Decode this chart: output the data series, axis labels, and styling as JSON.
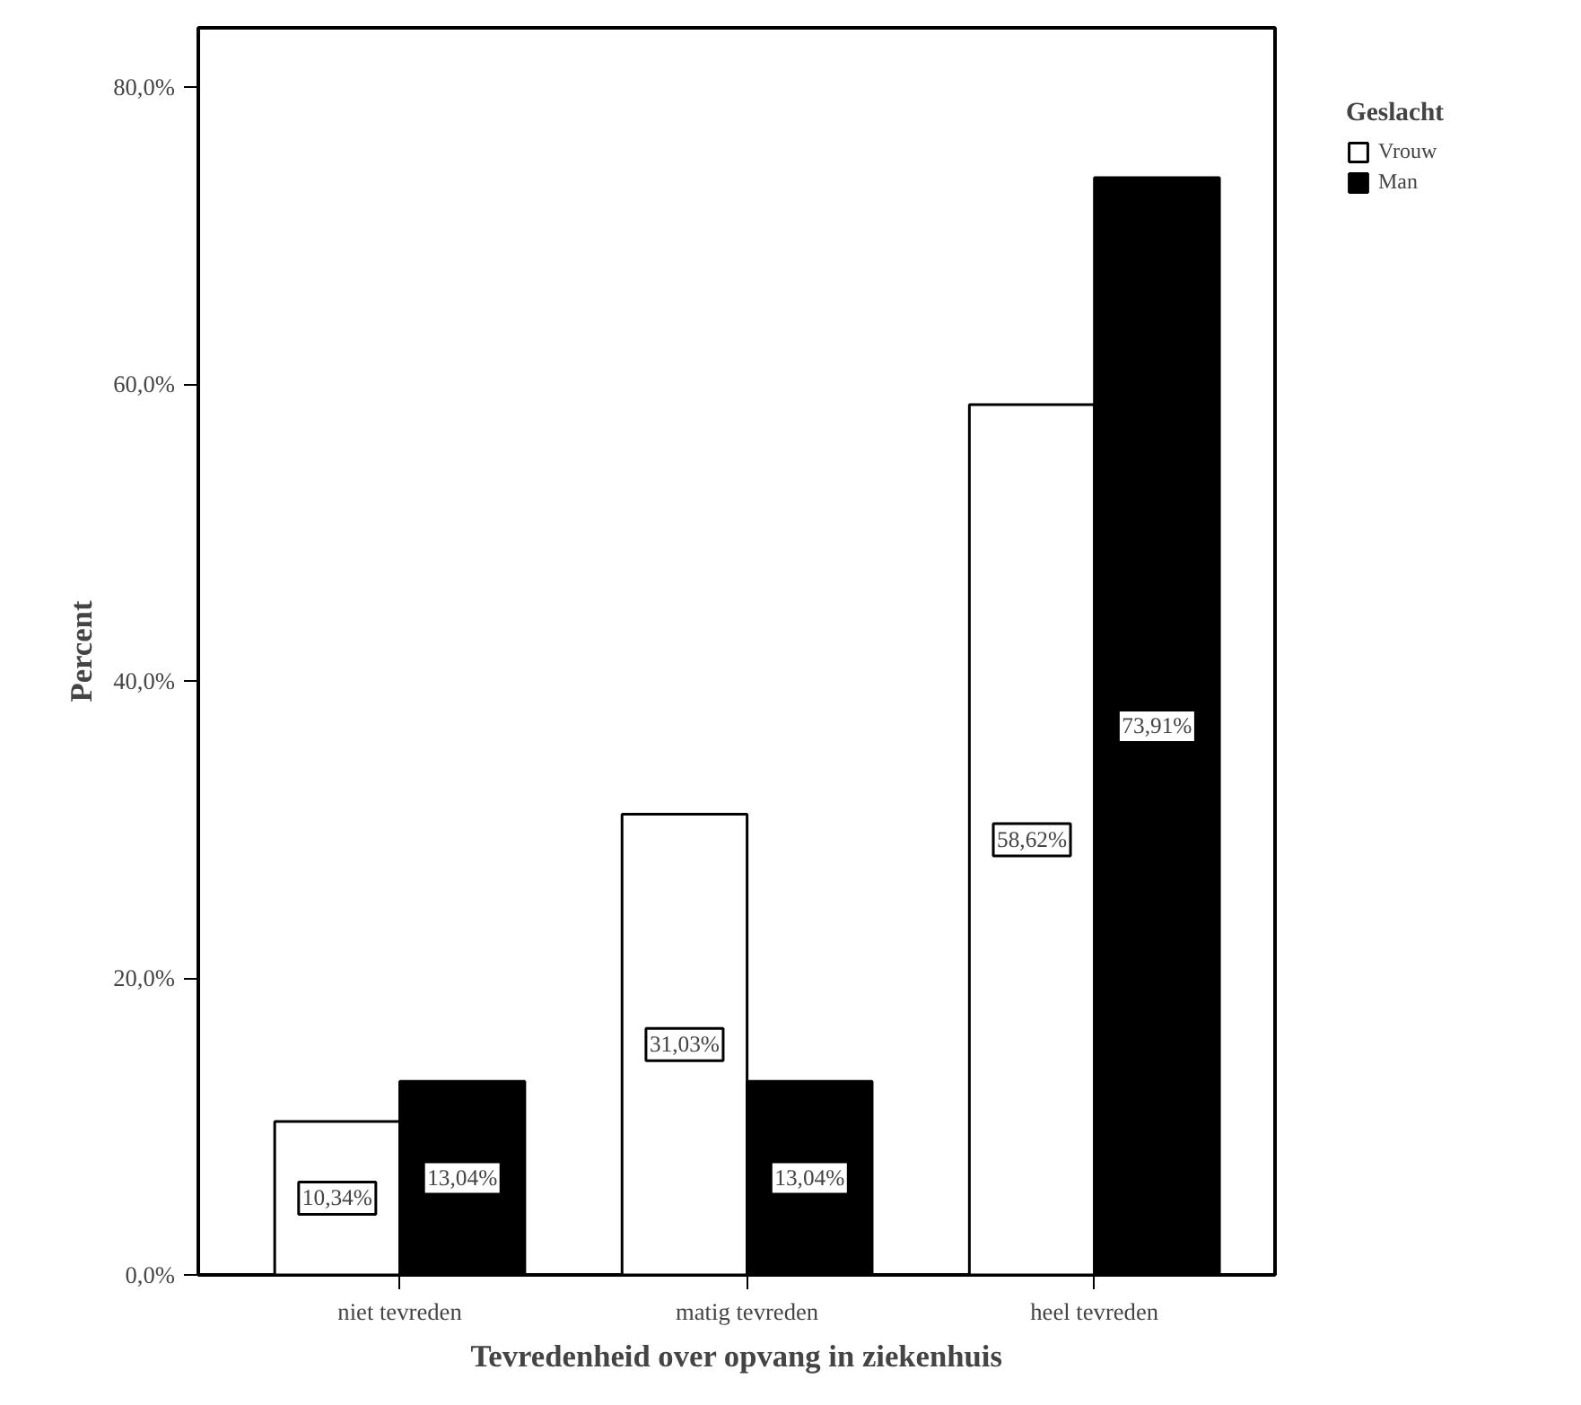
{
  "chart_data": {
    "type": "bar",
    "xlabel": "Tevredenheid over opvang in ziekenhuis",
    "ylabel": "Percent",
    "legend_title": "Geslacht",
    "legend": "top right",
    "categories": [
      "niet tevreden",
      "matig tevreden",
      "heel tevreden"
    ],
    "series": [
      {
        "name": "Vrouw",
        "color": "#ffffff",
        "values": [
          10.34,
          31.03,
          58.62
        ],
        "value_labels": [
          "10,34%",
          "31,03%",
          "58,62%"
        ]
      },
      {
        "name": "Man",
        "color": "#000000",
        "values": [
          13.04,
          13.04,
          73.91
        ],
        "value_labels": [
          "13,04%",
          "13,04%",
          "73,91%"
        ]
      }
    ],
    "ylim": [
      0,
      84
    ],
    "yticks": [
      {
        "value": 0,
        "label": "0,0%"
      },
      {
        "value": 20,
        "label": "20,0%"
      },
      {
        "value": 40,
        "label": "40,0%"
      },
      {
        "value": 60,
        "label": "60,0%"
      },
      {
        "value": 80,
        "label": "80,0%"
      }
    ],
    "grid": false
  }
}
